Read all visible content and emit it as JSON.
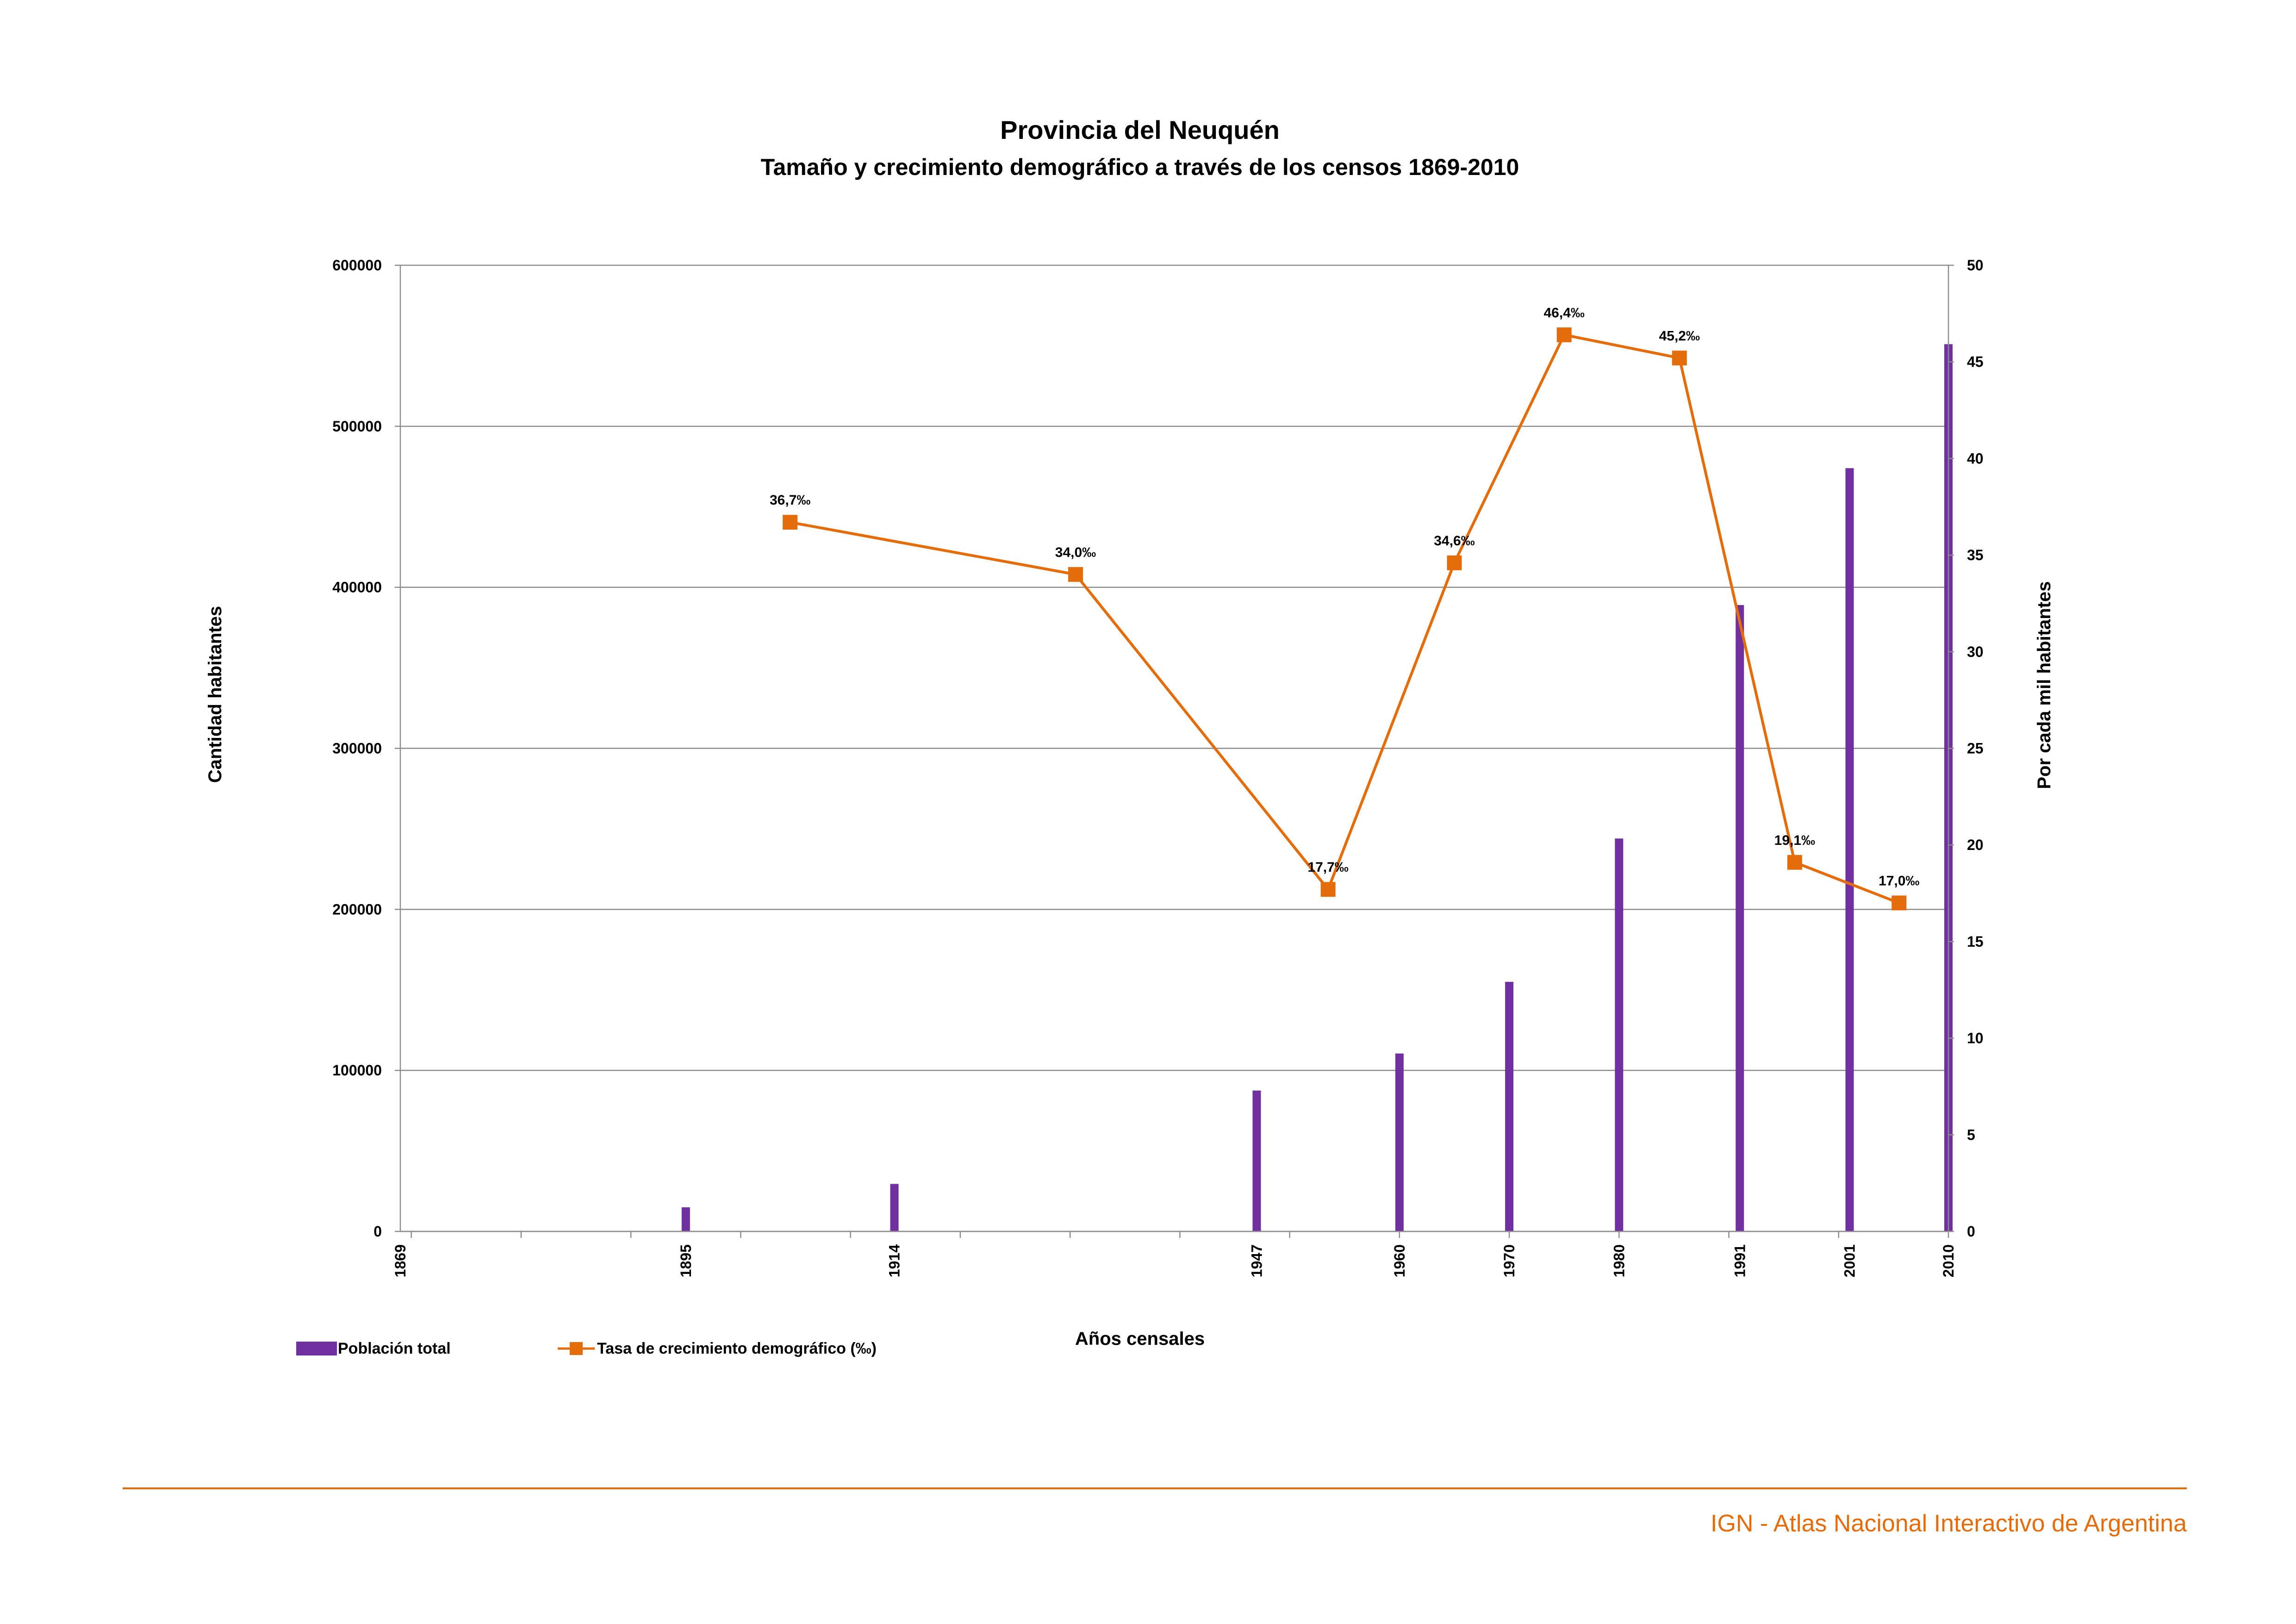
{
  "chart_data": {
    "type": "bar",
    "title": "Provincia del Neuquén",
    "subtitle": "Tamaño y crecimiento demográfico a través de los censos 1869-2010",
    "xlabel": "Años censales",
    "ylabel": "Cantidad habitantes",
    "y2label": "Por cada mil habitantes",
    "x_range": [
      1869,
      2010
    ],
    "x_ticks": [
      "1869",
      "1895",
      "1914",
      "1947",
      "1960",
      "1970",
      "1980",
      "1991",
      "2001",
      "2010"
    ],
    "ylim": [
      0,
      600000
    ],
    "y_ticks": [
      "0",
      "100000",
      "200000",
      "300000",
      "400000",
      "500000",
      "600000"
    ],
    "y2lim": [
      0,
      50
    ],
    "y2_ticks": [
      "0",
      "5",
      "10",
      "15",
      "20",
      "25",
      "30",
      "35",
      "40",
      "45",
      "50"
    ],
    "grid": true,
    "legend_position": "bottom-left",
    "series": [
      {
        "name": "Población total",
        "type": "bar",
        "axis": "left",
        "color": "#7030a0",
        "x": [
          1895,
          1914,
          1947,
          1960,
          1970,
          1980,
          1991,
          2001,
          2010
        ],
        "values": [
          15000,
          29500,
          87500,
          110500,
          155000,
          244000,
          389000,
          474000,
          551000
        ]
      },
      {
        "name": "Tasa de crecimiento demográfico (‰)",
        "type": "line",
        "axis": "right",
        "color": "#e46c0a",
        "x": [
          1904.5,
          1930.5,
          1953.5,
          1965,
          1975,
          1985.5,
          1996,
          2005.5
        ],
        "values": [
          36.7,
          34.0,
          17.7,
          34.6,
          46.4,
          45.2,
          19.1,
          17.0
        ],
        "labels": [
          "36,7‰",
          "34,0‰",
          "17,7‰",
          "34,6‰",
          "46,4‰",
          "45,2‰",
          "19,1‰",
          "17,0‰"
        ]
      }
    ]
  },
  "footer": {
    "text": "IGN - Atlas Nacional Interactivo de Argentina",
    "color": "#e46c0a"
  }
}
